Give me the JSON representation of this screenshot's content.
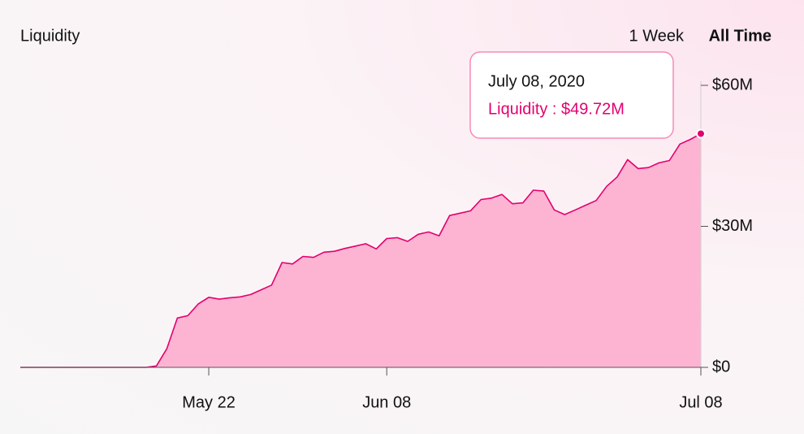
{
  "chart_data": {
    "type": "area",
    "title": "Liquidity",
    "ranges": [
      "1 Week",
      "All Time"
    ],
    "x": [
      "May 04",
      "May 05",
      "May 06",
      "May 07",
      "May 08",
      "May 09",
      "May 10",
      "May 11",
      "May 12",
      "May 13",
      "May 14",
      "May 15",
      "May 16",
      "May 17",
      "May 18",
      "May 19",
      "May 20",
      "May 21",
      "May 22",
      "May 23",
      "May 24",
      "May 25",
      "May 26",
      "May 27",
      "May 28",
      "May 29",
      "May 30",
      "May 31",
      "Jun 01",
      "Jun 02",
      "Jun 03",
      "Jun 04",
      "Jun 05",
      "Jun 06",
      "Jun 07",
      "Jun 08",
      "Jun 09",
      "Jun 10",
      "Jun 11",
      "Jun 12",
      "Jun 13",
      "Jun 14",
      "Jun 15",
      "Jun 16",
      "Jun 17",
      "Jun 18",
      "Jun 19",
      "Jun 20",
      "Jun 21",
      "Jun 22",
      "Jun 23",
      "Jun 24",
      "Jun 25",
      "Jun 26",
      "Jun 27",
      "Jun 28",
      "Jun 29",
      "Jun 30",
      "Jul 01",
      "Jul 02",
      "Jul 03",
      "Jul 04",
      "Jul 05",
      "Jul 06",
      "Jul 07",
      "Jul 08"
    ],
    "values": [
      0,
      0,
      0,
      0,
      0,
      0,
      0,
      0,
      0,
      0,
      0,
      0,
      0,
      0.3,
      4,
      10.5,
      11,
      13.5,
      14.9,
      14.5,
      14.8,
      15,
      15.5,
      16.5,
      17.5,
      22.3,
      22,
      23.6,
      23.4,
      24.5,
      24.7,
      25.3,
      25.8,
      26.3,
      25.2,
      27.4,
      27.6,
      26.8,
      28.3,
      28.8,
      28,
      32.3,
      32.8,
      33.3,
      35.7,
      36,
      36.8,
      34.8,
      35,
      37.7,
      37.5,
      33.5,
      32.5,
      33.5,
      34.5,
      35.5,
      38.5,
      40.5,
      44.2,
      42.3,
      42.5,
      43.5,
      44,
      47.5,
      48.5,
      49.72
    ],
    "xticks": [
      "May 22",
      "Jun 08",
      "Jul 08"
    ],
    "ylim": [
      0,
      60
    ],
    "yticks": [
      {
        "value": 0,
        "label": "$0"
      },
      {
        "value": 30,
        "label": "$30M"
      },
      {
        "value": 60,
        "label": "$60M"
      }
    ],
    "color": "#e3006f",
    "fill": "#fdb4d3",
    "tooltip": {
      "date": "July 08, 2020",
      "label": "Liquidity : $49.72M"
    }
  }
}
